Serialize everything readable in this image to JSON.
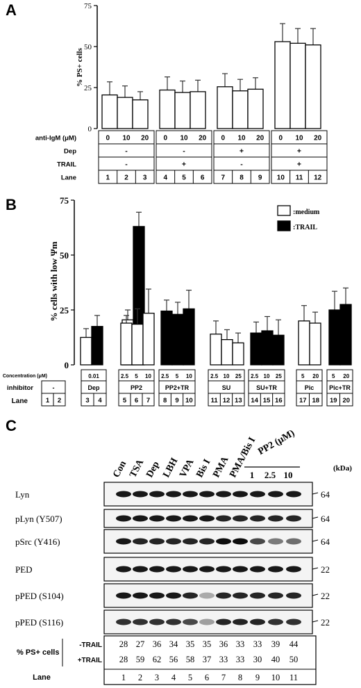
{
  "panels": {
    "a": {
      "letter": "A",
      "ylabel": "% PS+ cells",
      "yticks": [
        "0",
        "25",
        "50",
        "75"
      ],
      "rows": [
        {
          "label": "anti-IgM (μM)",
          "groups": [
            [
              "0",
              "10",
              "20"
            ],
            [
              "0",
              "10",
              "20"
            ],
            [
              "0",
              "10",
              "20"
            ],
            [
              "0",
              "10",
              "20"
            ]
          ]
        },
        {
          "label": "Dep",
          "groups": [
            [
              "-"
            ],
            [
              "-"
            ],
            [
              "+"
            ],
            [
              "+"
            ]
          ]
        },
        {
          "label": "TRAIL",
          "groups": [
            [
              "-"
            ],
            [
              "+"
            ],
            [
              "-"
            ],
            [
              "+"
            ]
          ]
        },
        {
          "label": "Lane",
          "groups": [
            [
              "1",
              "2",
              "3"
            ],
            [
              "4",
              "5",
              "6"
            ],
            [
              "7",
              "8",
              "9"
            ],
            [
              "10",
              "11",
              "12"
            ]
          ]
        }
      ]
    },
    "b": {
      "letter": "B",
      "ylabel": "% cells with low Ψm",
      "yticks": [
        "0",
        "25",
        "50",
        "75"
      ],
      "legend": [
        ":medium",
        ":TRAIL"
      ],
      "rows": [
        {
          "label": "Concentration (μM)",
          "groups": [
            [],
            [
              "0.01"
            ],
            [
              "2.5",
              "5",
              "10"
            ],
            [
              "2.5",
              "5",
              "10"
            ],
            [
              "2.5",
              "10",
              "25"
            ],
            [
              "2.5",
              "10",
              "25"
            ],
            [
              "5",
              "20"
            ],
            [
              "5",
              "20"
            ]
          ]
        },
        {
          "label": "inhibitor",
          "groups": [
            [
              "-"
            ],
            [
              "Dep"
            ],
            [
              "PP2"
            ],
            [
              "PP2+TR"
            ],
            [
              "SU"
            ],
            [
              "SU+TR"
            ],
            [
              "Pic"
            ],
            [
              "Pic+TR"
            ]
          ]
        },
        {
          "label": "Lane",
          "groups": [
            [
              "1",
              "2"
            ],
            [
              "3",
              "4"
            ],
            [
              "5",
              "6",
              "7"
            ],
            [
              "8",
              "9",
              "10"
            ],
            [
              "11",
              "12",
              "13"
            ],
            [
              "14",
              "15",
              "16"
            ],
            [
              "17",
              "18"
            ],
            [
              "19",
              "20"
            ]
          ]
        }
      ]
    },
    "c": {
      "letter": "C",
      "lane_labels": [
        "Con",
        "TSA",
        "Dep",
        "LBH",
        "VPA",
        "Bis I",
        "PMA",
        "PMA/Bis I"
      ],
      "pp2_label": "PP2 (μM)",
      "pp2_concs": [
        "1",
        "2.5",
        "10"
      ],
      "kda": "(kDa)",
      "blots": [
        {
          "label": "Lyn",
          "marker": "64"
        },
        {
          "label": "pLyn (Y507)",
          "marker": "64"
        },
        {
          "label": "pSrc (Y416)",
          "marker": "64"
        },
        {
          "label": "PED",
          "marker": "22"
        },
        {
          "label": "pPED (S104)",
          "marker": "22"
        },
        {
          "label": "pPED (S116)",
          "marker": "22"
        }
      ],
      "table_label": "% PS+ cells",
      "row_minus": "-TRAIL",
      "row_plus": "+TRAIL",
      "minus": [
        "28",
        "27",
        "36",
        "34",
        "35",
        "35",
        "36",
        "33",
        "33",
        "39",
        "44"
      ],
      "plus": [
        "28",
        "59",
        "62",
        "56",
        "58",
        "37",
        "33",
        "33",
        "30",
        "40",
        "50"
      ],
      "lane_row_label": "Lane",
      "lanes": [
        "1",
        "2",
        "3",
        "4",
        "5",
        "6",
        "7",
        "8",
        "9",
        "10",
        "11"
      ]
    }
  },
  "chart_data": [
    {
      "type": "bar",
      "ylabel": "% PS+ cells",
      "ylim": [
        0,
        75
      ],
      "categories": [
        "1",
        "2",
        "3",
        "4",
        "5",
        "6",
        "7",
        "8",
        "9",
        "10",
        "11",
        "12"
      ],
      "values": [
        20.5,
        19,
        17.5,
        23.5,
        22,
        22.5,
        25.5,
        23,
        24,
        53,
        52,
        51
      ],
      "errors": [
        8,
        7,
        5,
        8,
        7,
        7,
        8,
        7,
        7,
        11,
        9,
        10
      ],
      "fill": "white"
    },
    {
      "type": "bar",
      "ylabel": "% cells with low Ψm",
      "ylim": [
        0,
        75
      ],
      "categories": [
        "1",
        "2",
        "3",
        "4",
        "5",
        "6",
        "7",
        "8",
        "9",
        "10",
        "11",
        "12",
        "13",
        "14",
        "15",
        "16",
        "17",
        "18",
        "19",
        "20"
      ],
      "values": [
        12.5,
        17.5,
        20.5,
        63,
        19,
        18.5,
        23.5,
        24.5,
        23,
        25.5,
        14,
        11.5,
        10,
        14.5,
        15.5,
        13.5,
        20,
        19,
        25,
        27.5
      ],
      "errors": [
        4,
        5,
        4.5,
        6.5,
        3.5,
        7,
        11,
        5,
        5.5,
        8.5,
        6,
        4.5,
        4.5,
        5,
        6.5,
        7,
        7,
        5,
        8.5,
        7.5
      ],
      "series_fill": [
        "#ffffff",
        "#000000",
        "#ffffff",
        "#000000",
        "#ffffff",
        "#ffffff",
        "#ffffff",
        "#000000",
        "#000000",
        "#000000",
        "#ffffff",
        "#ffffff",
        "#ffffff",
        "#000000",
        "#000000",
        "#000000",
        "#ffffff",
        "#ffffff",
        "#000000",
        "#000000"
      ],
      "legend": [
        ":medium",
        ":TRAIL"
      ]
    }
  ]
}
